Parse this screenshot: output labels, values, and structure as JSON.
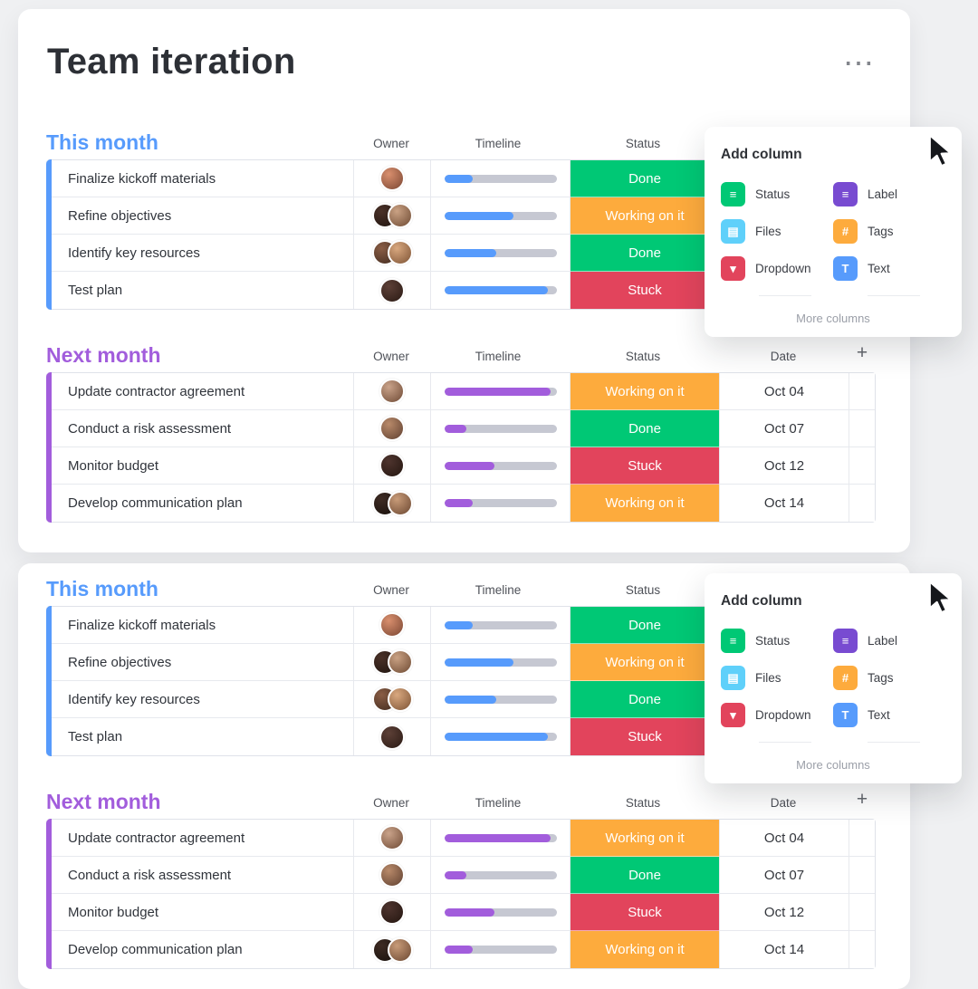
{
  "app": {
    "title": "Team iteration",
    "more_menu": "⋯"
  },
  "columns": {
    "owner": "Owner",
    "timeline": "Timeline",
    "status": "Status",
    "date": "Date",
    "add": "+"
  },
  "statuses": {
    "Done": "#00c875",
    "Working on it": "#fdab3d",
    "Stuck": "#e2445c"
  },
  "groups": [
    {
      "name": "This month",
      "color": "#579bfc",
      "show_date": false,
      "rows": [
        {
          "task": "Finalize kickoff materials",
          "progress": 25,
          "status": "Done",
          "avatars": [
            [
              "#d98f6e",
              "#7a4632"
            ]
          ]
        },
        {
          "task": "Refine objectives",
          "progress": 62,
          "status": "Working on it",
          "avatars": [
            [
              "#4a3128",
              "#1f140f"
            ],
            [
              "#caa284",
              "#6e4a33"
            ]
          ]
        },
        {
          "task": "Identify key resources",
          "progress": 46,
          "status": "Done",
          "avatars": [
            [
              "#8a5d45",
              "#402a1e"
            ],
            [
              "#d9a87f",
              "#7d5335"
            ]
          ]
        },
        {
          "task": "Test plan",
          "progress": 92,
          "status": "Stuck",
          "avatars": [
            [
              "#5d4037",
              "#2a1a14"
            ]
          ]
        }
      ]
    },
    {
      "name": "Next month",
      "color": "#a25ddc",
      "show_date": true,
      "rows": [
        {
          "task": "Update contractor agreement",
          "progress": 95,
          "status": "Working on it",
          "date": "Oct 04",
          "avatars": [
            [
              "#caa38a",
              "#6f4a35"
            ]
          ]
        },
        {
          "task": "Conduct a risk assessment",
          "progress": 20,
          "status": "Done",
          "date": "Oct 07",
          "avatars": [
            [
              "#b98a6a",
              "#5f4030"
            ]
          ]
        },
        {
          "task": "Monitor budget",
          "progress": 45,
          "status": "Stuck",
          "date": "Oct 12",
          "avatars": [
            [
              "#4e342e",
              "#241610"
            ]
          ]
        },
        {
          "task": "Develop communication plan",
          "progress": 25,
          "status": "Working on it",
          "date": "Oct 14",
          "avatars": [
            [
              "#3e2b23",
              "#17100c"
            ],
            [
              "#c89b78",
              "#6b4731"
            ]
          ]
        }
      ]
    }
  ],
  "add_column": {
    "title": "Add column",
    "more": "More columns",
    "items": [
      {
        "label": "Status",
        "color": "#00c875",
        "glyph": "≡",
        "icon": "status-column-icon"
      },
      {
        "label": "Label",
        "color": "#784bd1",
        "glyph": "≡",
        "icon": "label-column-icon"
      },
      {
        "label": "Files",
        "color": "#5fd0fa",
        "glyph": "▤",
        "icon": "files-column-icon"
      },
      {
        "label": "Tags",
        "color": "#fdab3d",
        "glyph": "#",
        "icon": "tags-column-icon"
      },
      {
        "label": "Dropdown",
        "color": "#e2445c",
        "glyph": "▾",
        "icon": "dropdown-column-icon"
      },
      {
        "label": "Text",
        "color": "#579bfc",
        "glyph": "T",
        "icon": "text-column-icon"
      }
    ]
  }
}
